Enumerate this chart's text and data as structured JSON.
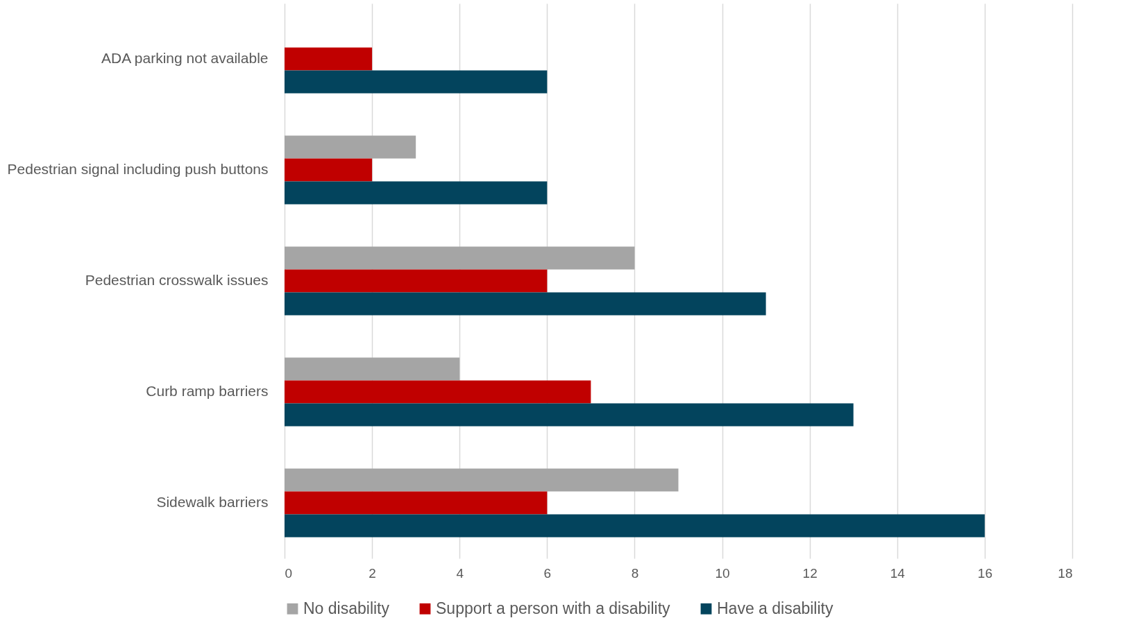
{
  "chart_data": {
    "type": "bar",
    "orientation": "horizontal",
    "categories": [
      "ADA parking  not available",
      "Pedestrian signal including push buttons",
      "Pedestrian crosswalk issues",
      "Curb ramp barriers",
      "Sidewalk barriers"
    ],
    "series": [
      {
        "name": "No disability",
        "color": "#a5a5a5",
        "values": [
          null,
          3,
          8,
          4,
          9
        ]
      },
      {
        "name": "Support a person with a disability",
        "color": "#c00000",
        "values": [
          2,
          2,
          6,
          7,
          6
        ]
      },
      {
        "name": "Have a disability",
        "color": "#03445d",
        "values": [
          6,
          6,
          11,
          13,
          16
        ]
      }
    ],
    "xlim": [
      0,
      18
    ],
    "xticks": [
      0,
      2,
      4,
      6,
      8,
      10,
      12,
      14,
      16,
      18
    ],
    "grid": "x",
    "legend": "bottom"
  }
}
